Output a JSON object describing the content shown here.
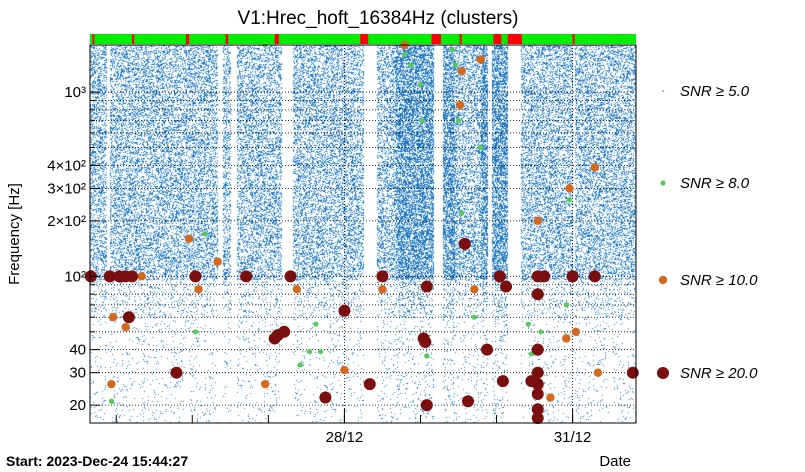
{
  "chart_data": {
    "type": "scatter",
    "title": "V1:Hrec_hoft_16384Hz (clusters)",
    "ylabel": "Frequency [Hz]",
    "xlabel": "Date",
    "footer": "Start: 2023-Dec-24 15:44:27",
    "y_scale": "log",
    "ylim": [
      16,
      1800
    ],
    "xlim": [
      "2023-12-24 15:44",
      "2023-12-31 20:00"
    ],
    "x_ticks": [
      {
        "label": "28/12",
        "date": "2023-12-28 00:00"
      },
      {
        "label": "31/12",
        "date": "2023-12-31 00:00"
      }
    ],
    "y_ticks": [
      {
        "value": 20,
        "label": "20"
      },
      {
        "value": 30,
        "label": "30"
      },
      {
        "value": 40,
        "label": "40"
      },
      {
        "value": 100,
        "label": "10²"
      },
      {
        "value": 200,
        "label": "2×10²"
      },
      {
        "value": 300,
        "label": "3×10²"
      },
      {
        "value": 400,
        "label": "4×10²"
      },
      {
        "value": 1000,
        "label": "10³"
      }
    ],
    "grid": "horizontal dotted",
    "legend_position": "right",
    "status_bar": {
      "good_color": "#00ee00",
      "bad_color": "#ff0000",
      "bad_segments": [
        [
          "2023-12-24 16:30",
          "2023-12-24 17:00"
        ],
        [
          "2023-12-25 05:00",
          "2023-12-25 05:40"
        ],
        [
          "2023-12-25 22:00",
          "2023-12-25 23:00"
        ],
        [
          "2023-12-26 10:30",
          "2023-12-26 11:20"
        ],
        [
          "2023-12-27 02:00",
          "2023-12-27 03:20"
        ],
        [
          "2023-12-28 05:00",
          "2023-12-28 07:30"
        ],
        [
          "2023-12-29 03:30",
          "2023-12-29 06:30"
        ],
        [
          "2023-12-29 12:20",
          "2023-12-29 13:00"
        ],
        [
          "2023-12-29 23:00",
          "2023-12-30 01:30"
        ],
        [
          "2023-12-30 03:30",
          "2023-12-30 08:00"
        ],
        [
          "2023-12-31 00:00",
          "2023-12-31 00:40"
        ]
      ]
    },
    "series": [
      {
        "name": "SNR ≥ 5.0",
        "color": "#1f78c0",
        "gaps": [
          [
            "2023-12-24 21:00",
            "2023-12-24 22:00"
          ],
          [
            "2023-12-26 08:00",
            "2023-12-26 09:30"
          ],
          [
            "2023-12-26 12:00",
            "2023-12-26 14:00"
          ],
          [
            "2023-12-27 04:00",
            "2023-12-27 07:30"
          ],
          [
            "2023-12-28 06:00",
            "2023-12-28 10:00"
          ],
          [
            "2023-12-29 04:00",
            "2023-12-29 07:00"
          ],
          [
            "2023-12-29 21:00",
            "2023-12-29 22:30"
          ],
          [
            "2023-12-30 03:30",
            "2023-12-30 07:30"
          ],
          [
            "2023-12-31 00:00",
            "2023-12-31 00:40"
          ]
        ]
      },
      {
        "name": "SNR ≥ 8.0",
        "color": "#5ac85a",
        "points": [
          [
            "2023-12-24 22:30",
            21
          ],
          [
            "2023-12-26 01:00",
            50
          ],
          [
            "2023-12-26 04:00",
            170
          ],
          [
            "2023-12-26 23:00",
            1800
          ],
          [
            "2023-12-27 10:00",
            33
          ],
          [
            "2023-12-27 13:00",
            39
          ],
          [
            "2023-12-27 15:00",
            55
          ],
          [
            "2023-12-27 16:30",
            39
          ],
          [
            "2023-12-28 19:00",
            1600
          ],
          [
            "2023-12-28 21:00",
            1400
          ],
          [
            "2023-12-29 00:00",
            1100
          ],
          [
            "2023-12-29 00:30",
            700
          ],
          [
            "2023-12-29 02:00",
            37
          ],
          [
            "2023-12-29 10:00",
            1700
          ],
          [
            "2023-12-29 11:00",
            1400
          ],
          [
            "2023-12-29 12:00",
            700
          ],
          [
            "2023-12-29 13:00",
            220
          ],
          [
            "2023-12-29 17:00",
            60
          ],
          [
            "2023-12-29 19:00",
            500
          ],
          [
            "2023-12-30 10:00",
            55
          ],
          [
            "2023-12-30 11:00",
            38
          ],
          [
            "2023-12-30 14:00",
            50
          ],
          [
            "2023-12-30 23:00",
            260
          ],
          [
            "2023-12-30 22:00",
            70
          ]
        ]
      },
      {
        "name": "SNR ≥ 10.0",
        "color": "#d2691e",
        "points": [
          [
            "2023-12-24 22:30",
            26
          ],
          [
            "2023-12-24 23:00",
            60
          ],
          [
            "2023-12-25 03:00",
            53
          ],
          [
            "2023-12-25 08:00",
            100
          ],
          [
            "2023-12-25 23:00",
            160
          ],
          [
            "2023-12-26 02:00",
            85
          ],
          [
            "2023-12-26 08:00",
            120
          ],
          [
            "2023-12-26 23:00",
            26
          ],
          [
            "2023-12-27 09:00",
            85
          ],
          [
            "2023-12-28 00:00",
            31
          ],
          [
            "2023-12-28 12:00",
            85
          ],
          [
            "2023-12-28 19:00",
            1800
          ],
          [
            "2023-12-29 13:00",
            1300
          ],
          [
            "2023-12-29 12:30",
            850
          ],
          [
            "2023-12-29 17:00",
            85
          ],
          [
            "2023-12-29 19:00",
            1500
          ],
          [
            "2023-12-30 22:00",
            46
          ],
          [
            "2023-12-30 13:00",
            200
          ],
          [
            "2023-12-30 17:00",
            22
          ],
          [
            "2023-12-30 23:00",
            300
          ],
          [
            "2023-12-31 01:00",
            50
          ],
          [
            "2023-12-31 07:00",
            390
          ],
          [
            "2023-12-31 08:00",
            30
          ]
        ]
      },
      {
        "name": "SNR ≥ 20.0",
        "color": "#7a0f0f",
        "points": [
          [
            "2023-12-24 16:00",
            100
          ],
          [
            "2023-12-24 22:00",
            100
          ],
          [
            "2023-12-25 01:00",
            100
          ],
          [
            "2023-12-25 03:00",
            100
          ],
          [
            "2023-12-25 05:00",
            100
          ],
          [
            "2023-12-25 04:00",
            60
          ],
          [
            "2023-12-26 01:00",
            100
          ],
          [
            "2023-12-25 19:00",
            30
          ],
          [
            "2023-12-26 17:00",
            100
          ],
          [
            "2023-12-27 02:00",
            46
          ],
          [
            "2023-12-27 03:00",
            48
          ],
          [
            "2023-12-27 05:00",
            50
          ],
          [
            "2023-12-27 07:00",
            100
          ],
          [
            "2023-12-27 18:00",
            22
          ],
          [
            "2023-12-28 00:00",
            65
          ],
          [
            "2023-12-28 08:00",
            26
          ],
          [
            "2023-12-28 12:00",
            100
          ],
          [
            "2023-12-29 02:00",
            88
          ],
          [
            "2023-12-29 01:00",
            46
          ],
          [
            "2023-12-29 01:30",
            44
          ],
          [
            "2023-12-29 02:00",
            20
          ],
          [
            "2023-12-29 14:00",
            150
          ],
          [
            "2023-12-29 15:00",
            21
          ],
          [
            "2023-12-29 21:00",
            40
          ],
          [
            "2023-12-30 01:00",
            100
          ],
          [
            "2023-12-30 03:00",
            88
          ],
          [
            "2023-12-30 02:00",
            27
          ],
          [
            "2023-12-30 11:00",
            27
          ],
          [
            "2023-12-30 13:00",
            100
          ],
          [
            "2023-12-30 15:00",
            100
          ],
          [
            "2023-12-30 13:00",
            80
          ],
          [
            "2023-12-30 13:00",
            40
          ],
          [
            "2023-12-30 13:00",
            30
          ],
          [
            "2023-12-30 13:00",
            26
          ],
          [
            "2023-12-30 13:00",
            23
          ],
          [
            "2023-12-30 13:00",
            19
          ],
          [
            "2023-12-30 13:00",
            17
          ],
          [
            "2023-12-31 00:00",
            100
          ],
          [
            "2023-12-31 07:00",
            100
          ],
          [
            "2023-12-31 19:00",
            30
          ]
        ]
      }
    ]
  }
}
